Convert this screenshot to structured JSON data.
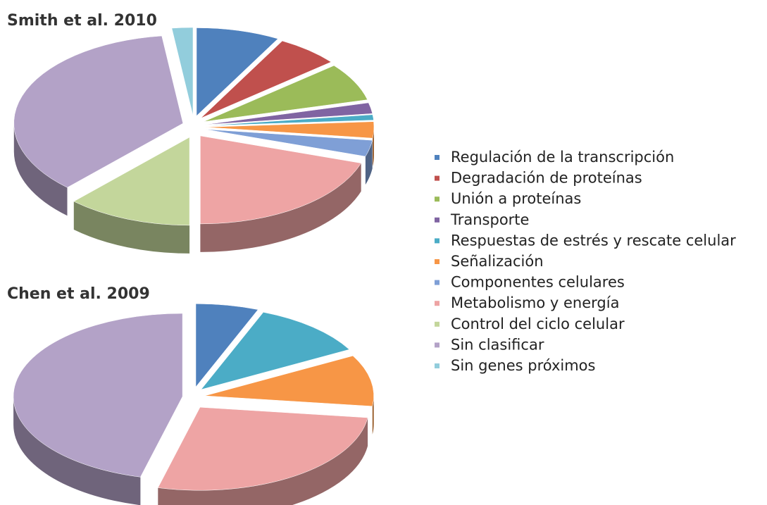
{
  "legend": {
    "categories": [
      "Regulación de la transcripción",
      "Degradación de proteínas",
      "Unión a proteínas",
      "Transporte",
      "Respuestas de estrés y rescate celular",
      "Señalización",
      "Componentes celulares",
      "Metabolismo y energía",
      "Control del ciclo celular",
      "Sin clasificar",
      "Sin genes próximos"
    ],
    "colors": [
      "#4f81bd",
      "#c0504d",
      "#9bbb59",
      "#8064a2",
      "#4bacc6",
      "#f79646",
      "#7f9fd6",
      "#eea4a4",
      "#c3d69b",
      "#b3a2c7",
      "#92cddc"
    ]
  },
  "chart_data": [
    {
      "type": "pie",
      "title": "Smith et al. 2010",
      "values": [
        8,
        6,
        7,
        2,
        1,
        3,
        3,
        20,
        12,
        36,
        2
      ]
    },
    {
      "type": "pie",
      "title": "Chen et al. 2009",
      "values": [
        6,
        0,
        0,
        0,
        11,
        10,
        0,
        27,
        0,
        46,
        0
      ]
    }
  ]
}
